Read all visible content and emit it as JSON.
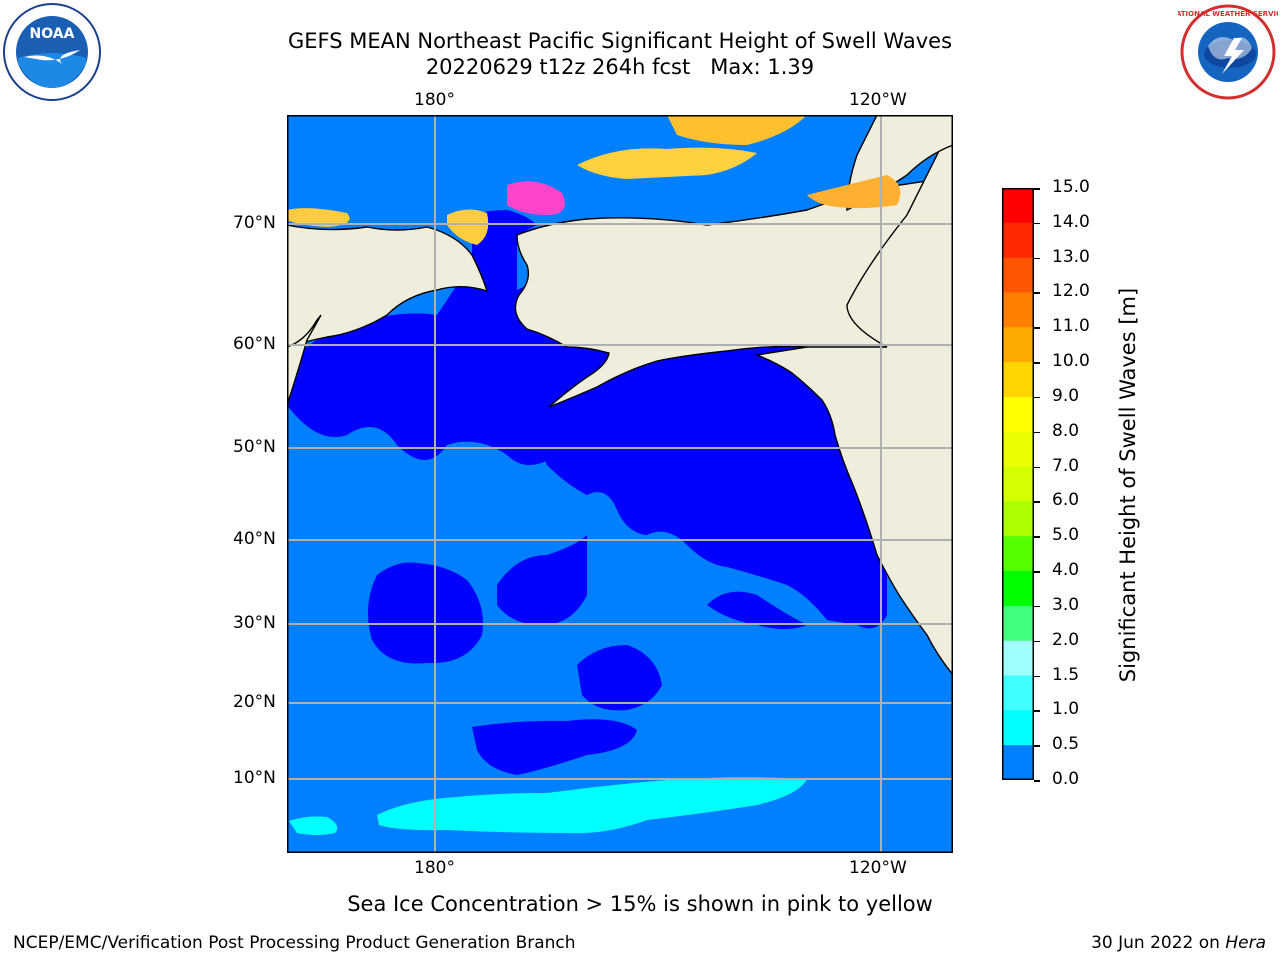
{
  "header": {
    "title_line1": "GEFS MEAN Northeast Pacific Significant Height of Swell Waves",
    "title_line2": "20220629 t12z 264h fcst   Max: 1.39"
  },
  "logos": {
    "left": {
      "name": "noaa-logo",
      "text": "NOAA"
    },
    "right": {
      "name": "nws-logo",
      "text": "NATIONAL WEATHER SERVICE"
    }
  },
  "map": {
    "lon_labels": [
      "180°",
      "120°W"
    ],
    "lat_labels": [
      "70°N",
      "60°N",
      "50°N",
      "40°N",
      "30°N",
      "20°N",
      "10°N"
    ],
    "colors": {
      "land": "#efeedc",
      "swell_0_0p5": "#0000ff",
      "swell_0p5_1": "#0080ff",
      "swell_1_1p5": "#00ffff",
      "grid": "#b0b0b0"
    }
  },
  "colorbar": {
    "title": "Significant Height of Swell Waves [m]",
    "labels": [
      "15.0",
      "14.0",
      "13.0",
      "12.0",
      "11.0",
      "10.0",
      "9.0",
      "8.0",
      "7.0",
      "6.0",
      "5.0",
      "4.0",
      "3.0",
      "2.0",
      "1.5",
      "1.0",
      "0.5",
      "0.0"
    ],
    "colors": [
      "#ff0000",
      "#ff2a00",
      "#ff5500",
      "#ff8000",
      "#ffaa00",
      "#ffd400",
      "#ffff00",
      "#eaff00",
      "#d4ff00",
      "#aaff00",
      "#55ff00",
      "#00ff00",
      "#40ff80",
      "#a0ffff",
      "#40ffff",
      "#00ffff",
      "#0080ff",
      "#0000ff"
    ]
  },
  "footer": {
    "note": "Sea Ice Concentration > 15% is shown in pink to yellow",
    "credit": "NCEP/EMC/Verification Post Processing Product Generation Branch",
    "date": "30 Jun 2022 on",
    "host": "Hera"
  }
}
